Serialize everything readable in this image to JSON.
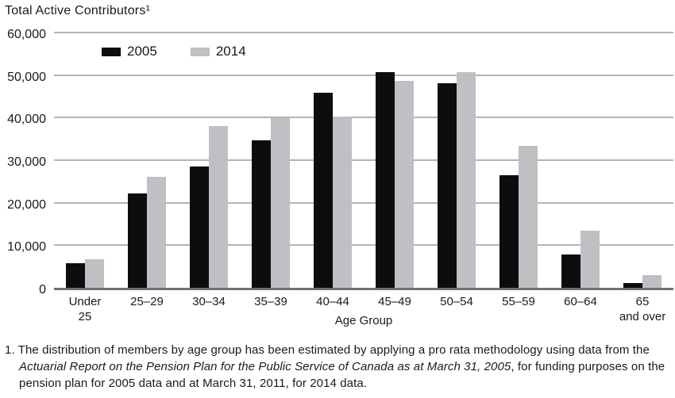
{
  "chart_data": {
    "type": "bar",
    "title": "Total Active Contributors¹",
    "xlabel": "Age Group",
    "ylabel": "",
    "ylim": [
      0,
      60000
    ],
    "grid": "horizontal",
    "legend_position": "top-left-inside",
    "categories": [
      "Under 25",
      "25–29",
      "30–34",
      "35–39",
      "40–44",
      "45–49",
      "50–54",
      "55–59",
      "60–64",
      "65 and over"
    ],
    "x_tick_labels": [
      "Under\n25",
      "25–29",
      "30–34",
      "35–39",
      "40–44",
      "45–49",
      "50–54",
      "55–59",
      "60–64",
      "65\nand over"
    ],
    "y_ticks": [
      0,
      10000,
      20000,
      30000,
      40000,
      50000,
      60000
    ],
    "y_tick_labels": [
      "0",
      "10,000",
      "20,000",
      "30,000",
      "40,000",
      "50,000",
      "60,000"
    ],
    "series": [
      {
        "name": "2005",
        "color": "#0d0d0d",
        "values": [
          5800,
          22200,
          28600,
          34600,
          45800,
          50700,
          48000,
          26500,
          7800,
          1200
        ]
      },
      {
        "name": "2014",
        "color": "#bec0c3",
        "values": [
          6800,
          26100,
          38000,
          39800,
          40300,
          48600,
          50600,
          33400,
          13500,
          3000
        ]
      }
    ]
  },
  "footnote": {
    "part1": "1. The distribution of members by age group has been estimated by applying a pro rata methodology using data from the ",
    "part2_italic": "Actuarial Report on the Pension Plan for the Public Service of Canada as at March 31, 2005",
    "part3": ", for funding purposes on the pension plan for 2005 data and at March 31, 2011, for 2014 data."
  },
  "colors": {
    "gridline": "#b4b4b4",
    "baseline": "#6f6f6f",
    "text": "#1a1a1a"
  }
}
